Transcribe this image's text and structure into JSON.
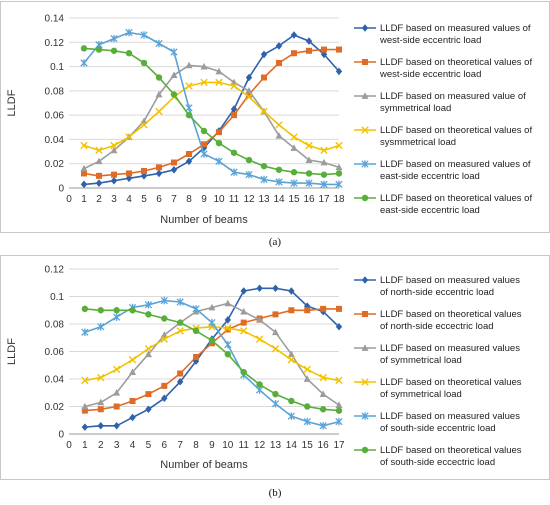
{
  "chart_data": [
    {
      "type": "line",
      "panel_label": "(a)",
      "ylabel": "LLDF",
      "xlabel": "Number of beams",
      "xlim": [
        0,
        18
      ],
      "ylim": [
        0,
        0.14
      ],
      "xticks": [
        0,
        1,
        2,
        3,
        4,
        5,
        6,
        7,
        8,
        9,
        10,
        11,
        12,
        13,
        14,
        15,
        16,
        17,
        18
      ],
      "yticks": [
        0,
        0.02,
        0.04,
        0.06,
        0.08,
        0.1,
        0.12,
        0.14
      ],
      "ytick_labels": [
        "0",
        "0.02",
        "0.04",
        "0.06",
        "0.08",
        "0.1",
        "0.12",
        "0.14"
      ],
      "grid": "horizontal",
      "legend_position": "right",
      "x": [
        1,
        2,
        3,
        4,
        5,
        6,
        7,
        8,
        9,
        10,
        11,
        12,
        13,
        14,
        15,
        16,
        17,
        18
      ],
      "series": [
        {
          "name": [
            "LLDF based on measured values of",
            "west-side eccentric load"
          ],
          "color": "#2e62ad",
          "marker": "diamond",
          "values": [
            0.003,
            0.004,
            0.006,
            0.008,
            0.01,
            0.012,
            0.015,
            0.022,
            0.033,
            0.047,
            0.065,
            0.091,
            0.11,
            0.117,
            0.126,
            0.121,
            0.11,
            0.096
          ]
        },
        {
          "name": [
            "LLDF based on theoretical values of",
            "west-side eccentric load"
          ],
          "color": "#e06b25",
          "marker": "square",
          "values": [
            0.012,
            0.01,
            0.011,
            0.012,
            0.014,
            0.017,
            0.021,
            0.028,
            0.036,
            0.046,
            0.06,
            0.077,
            0.091,
            0.103,
            0.111,
            0.113,
            0.114,
            0.114
          ]
        },
        {
          "name": [
            "LLDF based on measured value of",
            "symmetrical load"
          ],
          "color": "#9c9c9c",
          "marker": "triangle",
          "values": [
            0.016,
            0.022,
            0.031,
            0.042,
            0.055,
            0.077,
            0.093,
            0.101,
            0.1,
            0.096,
            0.087,
            0.08,
            0.063,
            0.043,
            0.033,
            0.023,
            0.021,
            0.017
          ]
        },
        {
          "name": [
            "LLDF based on theoretical values of",
            "sysmmetrical load"
          ],
          "color": "#f2c200",
          "marker": "x",
          "values": [
            0.035,
            0.031,
            0.035,
            0.042,
            0.052,
            0.063,
            0.075,
            0.084,
            0.087,
            0.087,
            0.084,
            0.075,
            0.063,
            0.052,
            0.042,
            0.035,
            0.031,
            0.035
          ]
        },
        {
          "name": [
            "LLDF based on measured values of",
            "east-side eccentric load"
          ],
          "color": "#5aa3d8",
          "marker": "star",
          "values": [
            0.103,
            0.118,
            0.123,
            0.128,
            0.126,
            0.119,
            0.112,
            0.066,
            0.028,
            0.022,
            0.013,
            0.011,
            0.007,
            0.005,
            0.004,
            0.004,
            0.003,
            0.003
          ]
        },
        {
          "name": [
            "LLDF based on theoretical values of",
            "east-side eccentric load"
          ],
          "color": "#58ae3a",
          "marker": "circle",
          "values": [
            0.115,
            0.114,
            0.113,
            0.111,
            0.103,
            0.091,
            0.077,
            0.06,
            0.047,
            0.037,
            0.029,
            0.023,
            0.018,
            0.015,
            0.013,
            0.012,
            0.011,
            0.012
          ]
        }
      ]
    },
    {
      "type": "line",
      "panel_label": "(b)",
      "ylabel": "LLDF",
      "xlabel": "Number of beams",
      "xlim": [
        0,
        17
      ],
      "ylim": [
        0,
        0.12
      ],
      "xticks": [
        0,
        1,
        2,
        3,
        4,
        5,
        6,
        7,
        8,
        9,
        10,
        11,
        12,
        13,
        14,
        15,
        16,
        17
      ],
      "yticks": [
        0,
        0.02,
        0.04,
        0.06,
        0.08,
        0.1,
        0.12
      ],
      "ytick_labels": [
        "0",
        "0.02",
        "0.04",
        "0.06",
        "0.08",
        "0.1",
        "0.12"
      ],
      "grid": "horizontal",
      "legend_position": "right",
      "x": [
        1,
        2,
        3,
        4,
        5,
        6,
        7,
        8,
        9,
        10,
        11,
        12,
        13,
        14,
        15,
        16,
        17
      ],
      "series": [
        {
          "name": [
            "LLDF based on measured values",
            "of north-side eccentric load"
          ],
          "color": "#2e62ad",
          "marker": "diamond",
          "values": [
            0.005,
            0.006,
            0.006,
            0.012,
            0.018,
            0.026,
            0.038,
            0.053,
            0.069,
            0.083,
            0.104,
            0.106,
            0.106,
            0.104,
            0.093,
            0.089,
            0.078
          ]
        },
        {
          "name": [
            "LLDF based on theoretical values",
            "of north-side eccectric load"
          ],
          "color": "#e06b25",
          "marker": "square",
          "values": [
            0.017,
            0.018,
            0.02,
            0.024,
            0.029,
            0.035,
            0.044,
            0.056,
            0.066,
            0.076,
            0.081,
            0.084,
            0.087,
            0.09,
            0.09,
            0.091,
            0.091
          ]
        },
        {
          "name": [
            "LLDF based on measured values",
            "of symmetrical load"
          ],
          "color": "#9c9c9c",
          "marker": "triangle",
          "values": [
            0.02,
            0.023,
            0.03,
            0.045,
            0.058,
            0.072,
            0.081,
            0.089,
            0.092,
            0.095,
            0.089,
            0.083,
            0.074,
            0.058,
            0.04,
            0.029,
            0.021
          ]
        },
        {
          "name": [
            "LLDF based on theoretical values",
            "of symmetrical load"
          ],
          "color": "#f2c200",
          "marker": "x",
          "values": [
            0.039,
            0.041,
            0.047,
            0.054,
            0.062,
            0.069,
            0.075,
            0.077,
            0.078,
            0.077,
            0.075,
            0.069,
            0.062,
            0.054,
            0.047,
            0.041,
            0.039
          ]
        },
        {
          "name": [
            "LLDF based on measured values",
            "of south-side eccentric load"
          ],
          "color": "#5aa3d8",
          "marker": "star",
          "values": [
            0.074,
            0.078,
            0.085,
            0.092,
            0.094,
            0.097,
            0.096,
            0.091,
            0.081,
            0.065,
            0.043,
            0.032,
            0.022,
            0.013,
            0.009,
            0.006,
            0.009
          ]
        },
        {
          "name": [
            "LLDF based on theoretical values",
            "of south-side eccectric load"
          ],
          "color": "#58ae3a",
          "marker": "circle",
          "values": [
            0.091,
            0.09,
            0.09,
            0.09,
            0.087,
            0.084,
            0.081,
            0.075,
            0.068,
            0.058,
            0.045,
            0.036,
            0.029,
            0.024,
            0.02,
            0.018,
            0.017
          ]
        }
      ]
    }
  ]
}
